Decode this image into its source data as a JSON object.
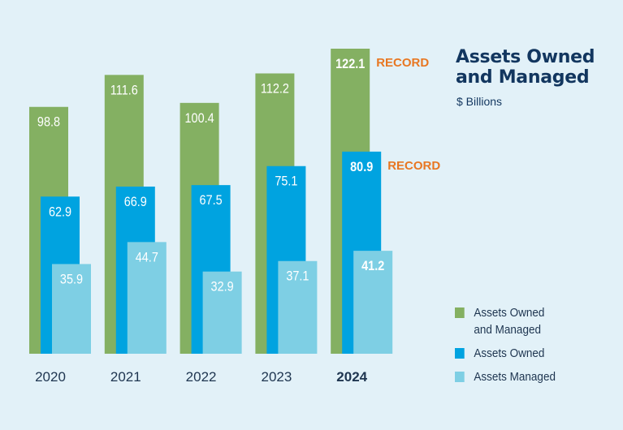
{
  "chart_data": {
    "type": "bar",
    "title": "Assets Owned and Managed",
    "subtitle": "$ Billions",
    "categories": [
      "2020",
      "2021",
      "2022",
      "2023",
      "2024"
    ],
    "highlight_category": "2024",
    "series": [
      {
        "name": "Assets Owned and Managed",
        "color": "#84b062",
        "values": [
          98.8,
          111.6,
          100.4,
          112.2,
          122.1
        ]
      },
      {
        "name": "Assets Owned",
        "color": "#00a3e0",
        "values": [
          62.9,
          66.9,
          67.5,
          75.1,
          80.9
        ]
      },
      {
        "name": "Assets Managed",
        "color": "#7ecfe4",
        "values": [
          35.9,
          44.7,
          32.9,
          37.1,
          41.2
        ]
      }
    ],
    "annotations": [
      {
        "series": "Assets Owned and Managed",
        "category": "2024",
        "text": "RECORD"
      },
      {
        "series": "Assets Owned",
        "category": "2024",
        "text": "RECORD"
      }
    ],
    "annotation_color": "#e87722",
    "title_color": "#12365f",
    "ylim": [
      0,
      122.1
    ],
    "grid": false,
    "legend": "bottom-right"
  }
}
